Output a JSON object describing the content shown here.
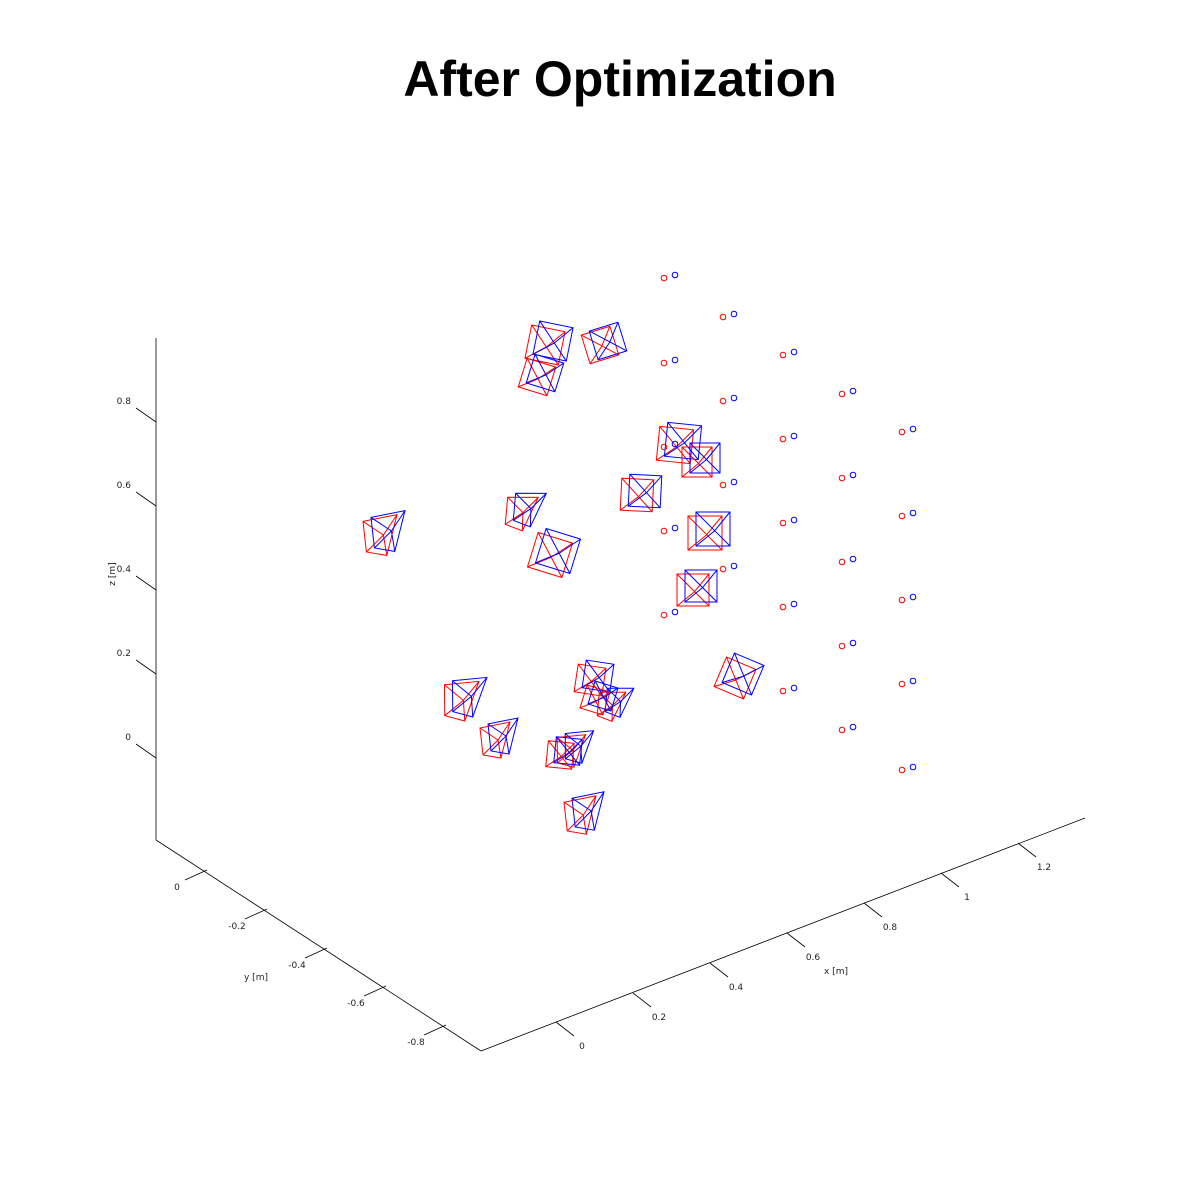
{
  "chart_data": {
    "type": "scatter",
    "title": "After Optimization",
    "xlabel": "x [m]",
    "ylabel": "y [m]",
    "zlabel": "z [m]",
    "x_ticks": [
      "0",
      "0.2",
      "0.4",
      "0.6",
      "0.8",
      "1",
      "1.2"
    ],
    "y_ticks": [
      "0",
      "-0.2",
      "-0.4",
      "-0.6",
      "-0.8"
    ],
    "z_ticks": [
      "0",
      "0.2",
      "0.4",
      "0.6",
      "0.8"
    ],
    "grid": false,
    "legend": "none",
    "series": [
      {
        "color": "#ff0000",
        "marker": "circle",
        "values": "checkerboard corners (before)"
      },
      {
        "color": "#0000ff",
        "marker": "circle",
        "values": "checkerboard corners (after)"
      }
    ],
    "cameras": {
      "count": 27,
      "colors": [
        "#ff0000",
        "#0000ff"
      ]
    }
  }
}
